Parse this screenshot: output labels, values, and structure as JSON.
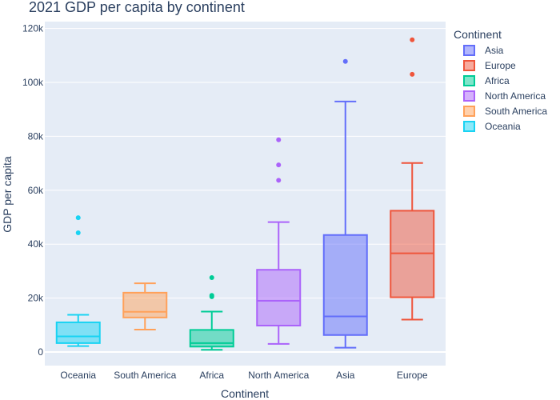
{
  "chart_data": {
    "type": "box",
    "title": "2021 GDP per capita by continent",
    "xlabel": "Continent",
    "ylabel": "GDP per capita",
    "ylim": [
      -5000,
      121500
    ],
    "yticks": [
      0,
      20000,
      40000,
      60000,
      80000,
      100000,
      120000
    ],
    "ytick_labels": [
      "0",
      "20k",
      "40k",
      "60k",
      "80k",
      "100k",
      "120k"
    ],
    "categories": [
      "Oceania",
      "South America",
      "Africa",
      "North America",
      "Asia",
      "Europe"
    ],
    "legend": {
      "title": "Continent",
      "placement": "right",
      "items": [
        "Asia",
        "Europe",
        "Africa",
        "North America",
        "South America",
        "Oceania"
      ]
    },
    "series": [
      {
        "name": "Oceania",
        "color": "#19d3f3",
        "stats": {
          "min": 2200,
          "q1": 3300,
          "median": 5800,
          "q3": 11000,
          "max": 13800
        },
        "outliers": [
          44200,
          49800
        ]
      },
      {
        "name": "South America",
        "color": "#ffa15a",
        "stats": {
          "min": 8300,
          "q1": 12800,
          "median": 14900,
          "q3": 22000,
          "max": 25500
        },
        "outliers": []
      },
      {
        "name": "Africa",
        "color": "#00cc96",
        "stats": {
          "min": 800,
          "q1": 2000,
          "median": 3300,
          "q3": 8200,
          "max": 15000
        },
        "outliers": [
          20500,
          21000,
          27600
        ]
      },
      {
        "name": "North America",
        "color": "#ab63fa",
        "stats": {
          "min": 3000,
          "q1": 9800,
          "median": 19000,
          "q3": 30500,
          "max": 48200
        },
        "outliers": [
          63700,
          69400,
          78700
        ]
      },
      {
        "name": "Asia",
        "color": "#636efa",
        "stats": {
          "min": 1600,
          "q1": 6300,
          "median": 13200,
          "q3": 43400,
          "max": 92900
        },
        "outliers": [
          107800
        ]
      },
      {
        "name": "Europe",
        "color": "#ef553b",
        "stats": {
          "min": 12000,
          "q1": 20300,
          "median": 36600,
          "q3": 52400,
          "max": 70100
        },
        "outliers": [
          103000,
          115800
        ]
      }
    ]
  }
}
